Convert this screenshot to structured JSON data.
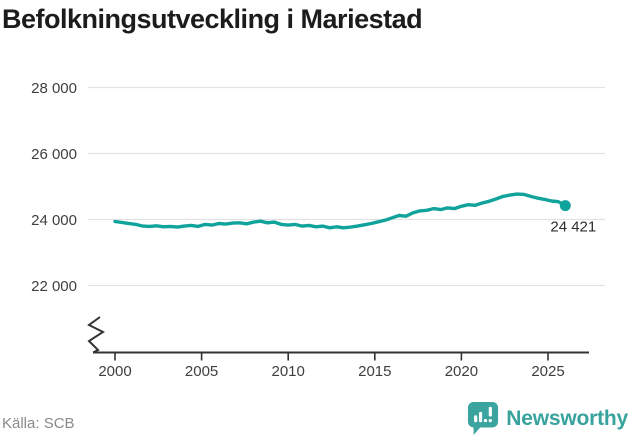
{
  "title": "Befolkningsutveckling i Mariestad",
  "source_label": "Källa: SCB",
  "branding": {
    "name": "Newsworthy",
    "icon": "newsworthy-badge-icon"
  },
  "colors": {
    "line": "#10a39b",
    "grid": "#e2e2e2",
    "axis": "#333333",
    "tick_text": "#3f3f3f",
    "title_text": "#1c1c1c",
    "source_text": "#8a8a8a",
    "brand_teal": "#3ba49e"
  },
  "chart_data": {
    "type": "line",
    "title": "Befolkningsutveckling i Mariestad",
    "series_name": "Befolkning i Mariestad",
    "xlabel": "",
    "ylabel": "",
    "legend": "none",
    "grid": "horizontal",
    "axis_break_bottom_left": true,
    "x_ticks": [
      {
        "value": 2000,
        "label": "2000"
      },
      {
        "value": 2005,
        "label": "2005"
      },
      {
        "value": 2010,
        "label": "2010"
      },
      {
        "value": 2015,
        "label": "2015"
      },
      {
        "value": 2020,
        "label": "2020"
      },
      {
        "value": 2025,
        "label": "2025"
      }
    ],
    "y_ticks": [
      {
        "value": 22000,
        "label": "22 000"
      },
      {
        "value": 24000,
        "label": "24 000"
      },
      {
        "value": 26000,
        "label": "26 000"
      },
      {
        "value": 28000,
        "label": "28 000"
      }
    ],
    "ylim": [
      22000,
      28000
    ],
    "xlim": [
      2000,
      2026
    ],
    "points": [
      [
        2000.0,
        23940
      ],
      [
        2000.4,
        23910
      ],
      [
        2000.8,
        23880
      ],
      [
        2001.2,
        23850
      ],
      [
        2001.6,
        23800
      ],
      [
        2002.0,
        23790
      ],
      [
        2002.4,
        23810
      ],
      [
        2002.8,
        23780
      ],
      [
        2003.2,
        23790
      ],
      [
        2003.6,
        23770
      ],
      [
        2004.0,
        23800
      ],
      [
        2004.4,
        23820
      ],
      [
        2004.8,
        23790
      ],
      [
        2005.2,
        23850
      ],
      [
        2005.6,
        23830
      ],
      [
        2006.0,
        23880
      ],
      [
        2006.4,
        23860
      ],
      [
        2006.8,
        23890
      ],
      [
        2007.2,
        23900
      ],
      [
        2007.6,
        23870
      ],
      [
        2008.0,
        23920
      ],
      [
        2008.4,
        23950
      ],
      [
        2008.8,
        23900
      ],
      [
        2009.2,
        23920
      ],
      [
        2009.6,
        23850
      ],
      [
        2010.0,
        23830
      ],
      [
        2010.4,
        23850
      ],
      [
        2010.8,
        23800
      ],
      [
        2011.2,
        23820
      ],
      [
        2011.6,
        23780
      ],
      [
        2012.0,
        23800
      ],
      [
        2012.4,
        23750
      ],
      [
        2012.8,
        23780
      ],
      [
        2013.2,
        23750
      ],
      [
        2013.6,
        23770
      ],
      [
        2014.0,
        23800
      ],
      [
        2014.4,
        23840
      ],
      [
        2014.8,
        23880
      ],
      [
        2015.2,
        23930
      ],
      [
        2015.6,
        23980
      ],
      [
        2016.0,
        24050
      ],
      [
        2016.4,
        24120
      ],
      [
        2016.8,
        24100
      ],
      [
        2017.2,
        24200
      ],
      [
        2017.6,
        24260
      ],
      [
        2018.0,
        24280
      ],
      [
        2018.4,
        24330
      ],
      [
        2018.8,
        24300
      ],
      [
        2019.2,
        24350
      ],
      [
        2019.6,
        24330
      ],
      [
        2020.0,
        24400
      ],
      [
        2020.4,
        24450
      ],
      [
        2020.8,
        24430
      ],
      [
        2021.2,
        24500
      ],
      [
        2021.6,
        24550
      ],
      [
        2022.0,
        24620
      ],
      [
        2022.4,
        24700
      ],
      [
        2022.8,
        24740
      ],
      [
        2023.2,
        24770
      ],
      [
        2023.6,
        24760
      ],
      [
        2024.0,
        24700
      ],
      [
        2024.4,
        24650
      ],
      [
        2024.8,
        24610
      ],
      [
        2025.2,
        24560
      ],
      [
        2025.6,
        24540
      ],
      [
        2026.0,
        24421
      ]
    ],
    "end_value": 24421,
    "end_label": "24 421"
  }
}
